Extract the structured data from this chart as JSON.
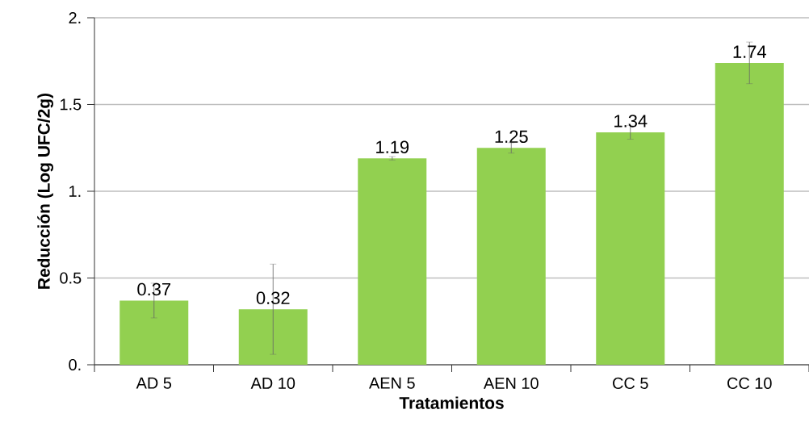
{
  "chart_data": {
    "type": "bar",
    "xlabel": "Tratamientos",
    "ylabel": "Reducción (Log UFC/2g)",
    "categories": [
      "AD 5",
      "AD 10",
      "AEN 5",
      "AEN 10",
      "CC 5",
      "CC 10"
    ],
    "values": [
      0.37,
      0.32,
      1.19,
      1.25,
      1.34,
      1.74
    ],
    "errors": [
      0.1,
      0.26,
      0.01,
      0.03,
      0.04,
      0.12
    ],
    "color": "#92d050",
    "ylim": [
      0,
      2
    ],
    "yticks": [
      {
        "value": 0,
        "label": "0."
      },
      0.5,
      {
        "value": 1,
        "label": "1."
      },
      1.5,
      {
        "value": 2,
        "label": "2."
      }
    ],
    "grid": "y",
    "data_labels": true
  }
}
